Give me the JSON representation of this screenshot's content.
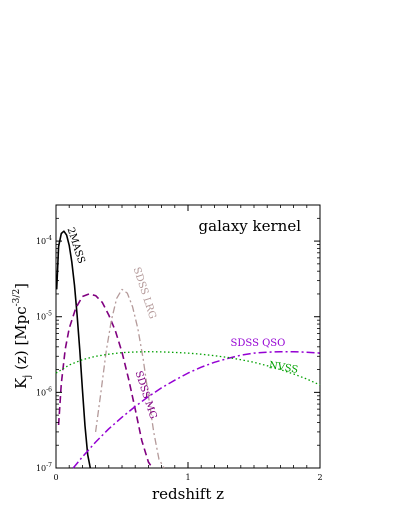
{
  "chart_data": {
    "type": "line",
    "title": "galaxy kernel",
    "xlabel": "redshift z",
    "ylabel": "K_j (z) [Mpc^-3/2]",
    "xlim": [
      0,
      2
    ],
    "ylim": [
      1e-07,
      0.0003
    ],
    "yscale": "log",
    "grid": false,
    "x_ticks": [
      {
        "v": 0,
        "label": "0"
      },
      {
        "v": 1,
        "label": "1"
      },
      {
        "v": 2,
        "label": "2"
      }
    ],
    "y_ticks": [
      {
        "v": 1e-07,
        "base": "10",
        "exp": "-7"
      },
      {
        "v": 1e-06,
        "base": "10",
        "exp": "-6"
      },
      {
        "v": 1e-05,
        "base": "10",
        "exp": "-5"
      },
      {
        "v": 0.0001,
        "base": "10",
        "exp": "-4"
      }
    ],
    "series": [
      {
        "name": "2MASS",
        "color": "#000000",
        "dash": "",
        "width": 1.6,
        "label_x": 0.13,
        "label_y": 8.5e-05,
        "label_rotate": 72,
        "x": [
          0.005,
          0.02,
          0.04,
          0.06,
          0.08,
          0.1,
          0.12,
          0.14,
          0.16,
          0.18,
          0.2,
          0.22,
          0.24,
          0.26
        ],
        "y": [
          2.3e-05,
          8.5e-05,
          0.000126,
          0.000135,
          0.00012,
          8.8e-05,
          5.3e-05,
          2.6e-05,
          1.05e-05,
          3.6e-06,
          1.1e-06,
          3.6e-07,
          1.5e-07,
          9e-08
        ]
      },
      {
        "name": "SDSS MG",
        "color": "#800080",
        "dash": "7,4",
        "width": 1.6,
        "label_x": 0.66,
        "label_y": 9e-07,
        "label_rotate": 72,
        "x": [
          0.02,
          0.04,
          0.07,
          0.1,
          0.15,
          0.2,
          0.25,
          0.3,
          0.35,
          0.4,
          0.45,
          0.5,
          0.55,
          0.6,
          0.65,
          0.7,
          0.73
        ],
        "y": [
          3.7e-07,
          1.3e-06,
          3.7e-06,
          7e-06,
          1.3e-05,
          1.85e-05,
          2e-05,
          1.9e-05,
          1.55e-05,
          1.05e-05,
          6.5e-06,
          3.4e-06,
          1.5e-06,
          6e-07,
          2.3e-07,
          1.2e-07,
          1e-07
        ]
      },
      {
        "name": "SDSS LRG",
        "color": "#b49a9a",
        "dash": "7,3,2,3",
        "width": 1.3,
        "label_x": 0.65,
        "label_y": 2e-05,
        "label_rotate": 72,
        "x": [
          0.3,
          0.34,
          0.38,
          0.42,
          0.46,
          0.5,
          0.54,
          0.58,
          0.62,
          0.66,
          0.7,
          0.74,
          0.78,
          0.82
        ],
        "y": [
          3e-07,
          1e-06,
          3.5e-06,
          9e-06,
          1.75e-05,
          2.3e-05,
          2.05e-05,
          1.35e-05,
          7e-06,
          2.8e-06,
          9e-07,
          3e-07,
          1.3e-07,
          1e-07
        ]
      },
      {
        "name": "SDSS QSO",
        "color": "#9400d3",
        "dash": "8,3,2,3",
        "width": 1.5,
        "label_x": 1.53,
        "label_y": 4.1e-06,
        "label_rotate": 0,
        "x": [
          0.13,
          0.2,
          0.3,
          0.4,
          0.5,
          0.6,
          0.7,
          0.8,
          0.9,
          1.0,
          1.1,
          1.2,
          1.3,
          1.4,
          1.5,
          1.6,
          1.7,
          1.8,
          1.9,
          2.0
        ],
        "y": [
          1e-07,
          1.4e-07,
          2.2e-07,
          3.3e-07,
          4.7e-07,
          6.5e-07,
          8.8e-07,
          1.15e-06,
          1.45e-06,
          1.8e-06,
          2.15e-06,
          2.5e-06,
          2.8e-06,
          3.1e-06,
          3.3e-06,
          3.4e-06,
          3.45e-06,
          3.45e-06,
          3.4e-06,
          3.3e-06
        ]
      },
      {
        "name": "NVSS",
        "color": "#00a000",
        "dash": "1.5,2.5",
        "width": 1.3,
        "label_x": 1.72,
        "label_y": 1.95e-06,
        "label_rotate": 10,
        "x": [
          0.0,
          0.1,
          0.2,
          0.3,
          0.4,
          0.5,
          0.6,
          0.7,
          0.8,
          0.9,
          1.0,
          1.1,
          1.2,
          1.3,
          1.4,
          1.5,
          1.6,
          1.7,
          1.8,
          1.9,
          2.0
        ],
        "y": [
          1.8e-06,
          2.3e-06,
          2.7e-06,
          3e-06,
          3.2e-06,
          3.35e-06,
          3.42e-06,
          3.45e-06,
          3.43e-06,
          3.38e-06,
          3.3e-06,
          3.2e-06,
          3.05e-06,
          2.9e-06,
          2.7e-06,
          2.5e-06,
          2.25e-06,
          2e-06,
          1.75e-06,
          1.5e-06,
          1.25e-06
        ]
      }
    ]
  }
}
